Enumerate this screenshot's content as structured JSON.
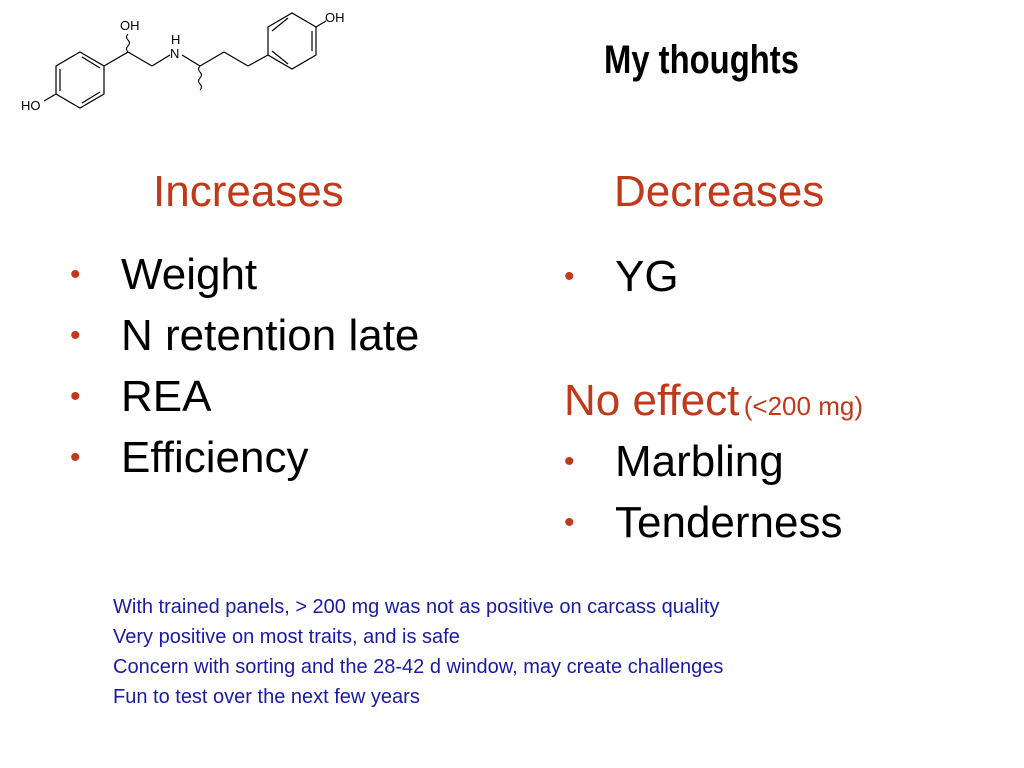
{
  "slide": {
    "title": "My thoughts",
    "molecule": {
      "labels": {
        "oh_top": "OH",
        "nh_h": "H",
        "nh_n": "N",
        "oh_right": "OH",
        "ho_left": "HO"
      }
    },
    "increases": {
      "heading": "Increases",
      "items": [
        "Weight",
        "N retention late",
        "REA",
        "Efficiency"
      ]
    },
    "decreases": {
      "heading": "Decreases",
      "items": [
        "YG"
      ],
      "no_effect_label": "No effect",
      "no_effect_note": "(<200 mg)",
      "no_effect_items": [
        "Marbling",
        "Tenderness"
      ]
    },
    "bullet_char": "•",
    "notes": [
      "With trained panels, > 200 mg was not as positive on carcass quality",
      "Very positive on most traits, and is safe",
      "Concern with sorting and the 28-42 d window, may create challenges",
      "Fun to test over the next few years"
    ],
    "colors": {
      "accent": "#c0391b",
      "notes": "#1a1aa6",
      "text": "#000000"
    }
  }
}
